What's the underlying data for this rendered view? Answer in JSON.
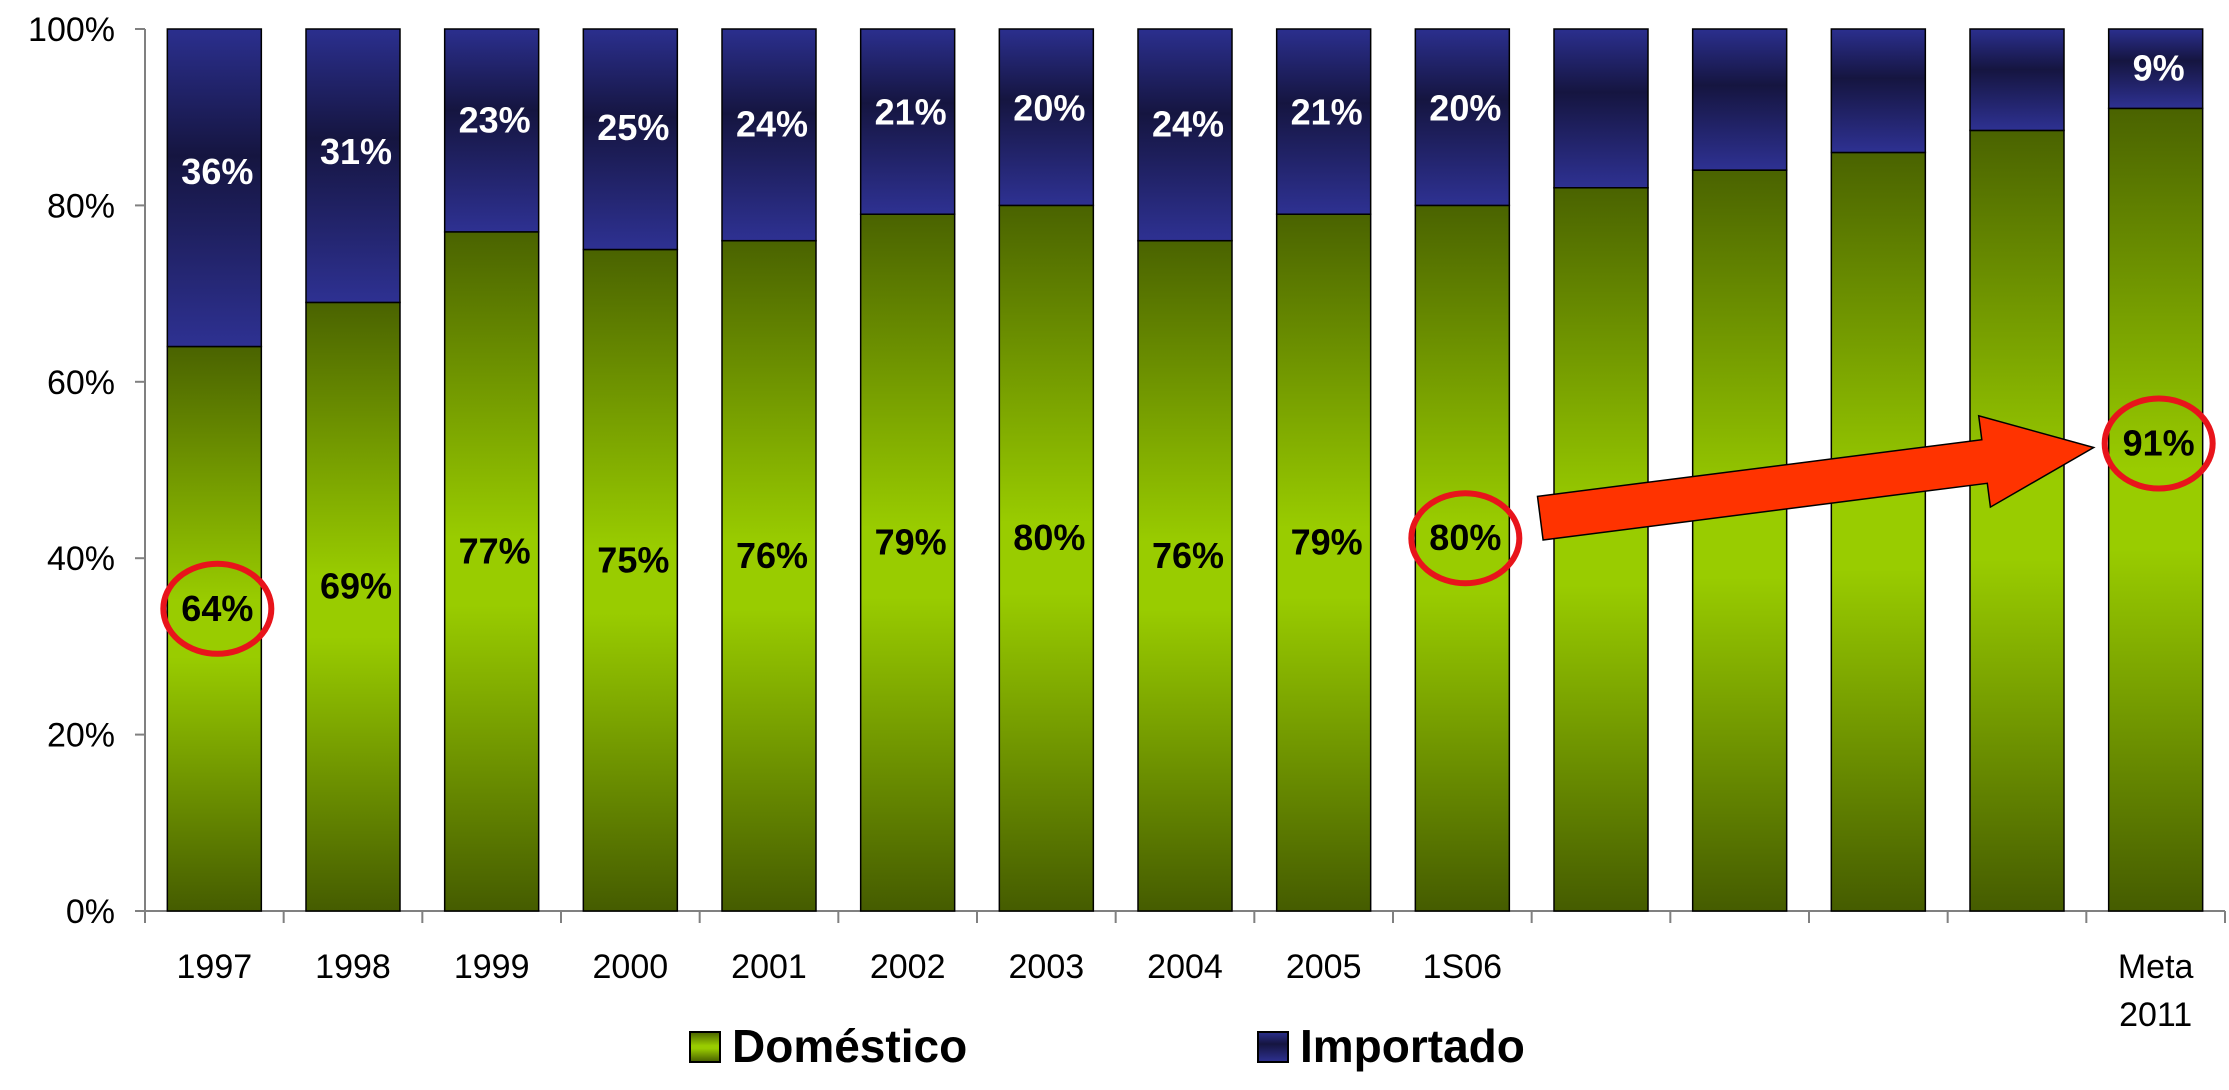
{
  "chart_data": {
    "type": "bar",
    "stacked": true,
    "categories": [
      "1997",
      "1998",
      "1999",
      "2000",
      "2001",
      "2002",
      "2003",
      "2004",
      "2005",
      "1S06",
      "",
      "",
      "",
      "",
      "Meta 2011"
    ],
    "series": [
      {
        "name": "Doméstico",
        "values": [
          64,
          69,
          77,
          75,
          76,
          79,
          80,
          76,
          79,
          80,
          82,
          84,
          86,
          88.5,
          91
        ],
        "labels": [
          "64%",
          "69%",
          "77%",
          "75%",
          "76%",
          "79%",
          "80%",
          "76%",
          "79%",
          "80%",
          "",
          "",
          "",
          "",
          "91%"
        ],
        "color": "#8fc400"
      },
      {
        "name": "Importado",
        "values": [
          36,
          31,
          23,
          25,
          24,
          21,
          20,
          24,
          21,
          20,
          18,
          16,
          14,
          11.5,
          9
        ],
        "labels": [
          "36%",
          "31%",
          "23%",
          "25%",
          "24%",
          "21%",
          "20%",
          "24%",
          "21%",
          "20%",
          "",
          "",
          "",
          "",
          "9%"
        ],
        "color": "#2e3192"
      }
    ],
    "yticks": [
      "0%",
      "20%",
      "40%",
      "60%",
      "80%",
      "100%"
    ],
    "ylim": [
      0,
      100
    ],
    "legend_position": "bottom",
    "highlighted_categories": [
      "1997",
      "1S06",
      "Meta 2011"
    ],
    "arrow_color": "#ff3300"
  }
}
